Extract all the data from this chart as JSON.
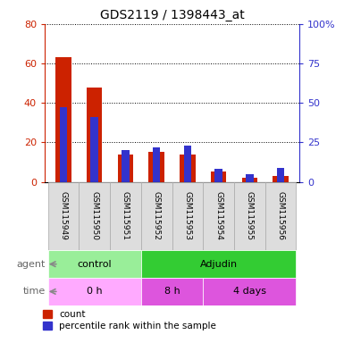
{
  "title": "GDS2119 / 1398443_at",
  "samples": [
    "GSM115949",
    "GSM115950",
    "GSM115951",
    "GSM115952",
    "GSM115953",
    "GSM115954",
    "GSM115955",
    "GSM115956"
  ],
  "count_values": [
    63,
    48,
    14,
    15,
    14,
    5,
    2,
    3
  ],
  "percentile_values": [
    47,
    41,
    20,
    22,
    23,
    8,
    5,
    9
  ],
  "count_scale": 80,
  "percentile_scale": 100,
  "left_yticks": [
    0,
    20,
    40,
    60,
    80
  ],
  "right_yticks": [
    0,
    25,
    50,
    75,
    100
  ],
  "right_ytick_labels": [
    "0",
    "25",
    "50",
    "75",
    "100%"
  ],
  "count_color": "#cc2200",
  "percentile_color": "#3333cc",
  "bar_width": 0.5,
  "agent_groups": [
    {
      "label": "control",
      "start": 0,
      "end": 3,
      "color": "#99ee99"
    },
    {
      "label": "Adjudin",
      "start": 3,
      "end": 8,
      "color": "#33cc33"
    }
  ],
  "time_data": [
    {
      "label": "0 h",
      "start": 0,
      "end": 3,
      "color": "#ffaaff"
    },
    {
      "label": "8 h",
      "start": 3,
      "end": 5,
      "color": "#dd55dd"
    },
    {
      "label": "4 days",
      "start": 5,
      "end": 8,
      "color": "#dd55dd"
    }
  ],
  "background_color": "#ffffff",
  "grid_color": "black",
  "xlabel_rotation": -90,
  "tick_bg_color": "#cccccc"
}
